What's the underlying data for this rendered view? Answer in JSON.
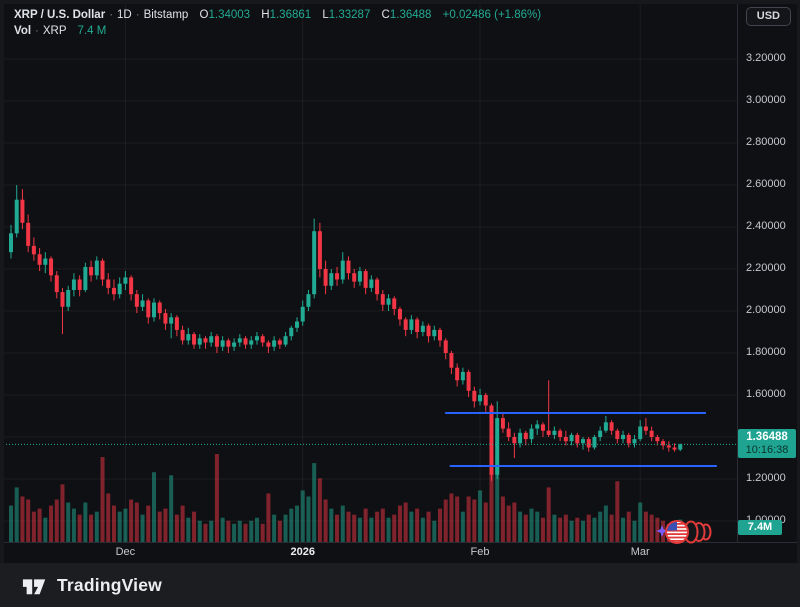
{
  "header": {
    "symbol": "XRP / U.S. Dollar",
    "sep": "·",
    "interval": "1D",
    "exchange": "Bitstamp",
    "ohlc": [
      {
        "k": "O",
        "v": "1.34003"
      },
      {
        "k": "H",
        "v": "1.36861"
      },
      {
        "k": "L",
        "v": "1.33287"
      },
      {
        "k": "C",
        "v": "1.36488"
      }
    ],
    "change": "+0.02486 (+1.86%)",
    "vol_label": "Vol",
    "vol_symbol": "XRP",
    "vol_value": "7.4 M"
  },
  "topbar": {
    "currency_button": "USD"
  },
  "price_scale": {
    "price_label": "1.36488",
    "countdown": "10:16:38",
    "volume_badge": "7.4M"
  },
  "footer": {
    "brand": "TradingView"
  },
  "icons": {
    "sticker": "rolling-us-flag-sticker",
    "logo": "tradingview-mark"
  },
  "colors": {
    "up": "#22ab94",
    "down": "#f23645",
    "accent_blue": "#2962ff",
    "badge": "#1fa491",
    "axis_text": "#c5c8ce",
    "grid": "rgba(255,255,255,0.055)",
    "background": "#0f1013"
  },
  "chart_data": {
    "type": "candlestick+volume",
    "title": "XRP / U.S. Dollar · 1D · Bitstamp",
    "current_price": 1.36488,
    "current_volume_m": 7.4,
    "y_axis": {
      "ticks": [
        3.2,
        3.0,
        2.8,
        2.6,
        2.4,
        2.2,
        2.0,
        1.8,
        1.6,
        1.4,
        1.2,
        1.0
      ],
      "min": 0.95,
      "max": 3.3
    },
    "x_axis": {
      "ticks": [
        {
          "label": "Dec",
          "day": 20,
          "bold": false
        },
        {
          "label": "2026",
          "day": 51,
          "bold": true
        },
        {
          "label": "Feb",
          "day": 82,
          "bold": false
        },
        {
          "label": "Mar",
          "day": 110,
          "bold": false
        }
      ]
    },
    "volume_scale_max_m": 29,
    "drawings": [
      {
        "type": "horizontal_line",
        "price": 1.514,
        "day_start": 75.9,
        "day_end": 121.5,
        "color": "#2962ff"
      },
      {
        "type": "horizontal_line",
        "price": 1.262,
        "day_start": 76.7,
        "day_end": 123.4,
        "color": "#2962ff"
      }
    ],
    "candles": [
      [
        2.28,
        2.41,
        2.25,
        2.37,
        12
      ],
      [
        2.37,
        2.6,
        2.35,
        2.53,
        18
      ],
      [
        2.53,
        2.58,
        2.39,
        2.42,
        15
      ],
      [
        2.42,
        2.46,
        2.28,
        2.31,
        14
      ],
      [
        2.31,
        2.35,
        2.24,
        2.27,
        10
      ],
      [
        2.27,
        2.3,
        2.19,
        2.22,
        11
      ],
      [
        2.22,
        2.28,
        2.18,
        2.25,
        8
      ],
      [
        2.25,
        2.26,
        2.14,
        2.17,
        12
      ],
      [
        2.17,
        2.19,
        2.06,
        2.09,
        14
      ],
      [
        2.09,
        2.11,
        1.89,
        2.02,
        19
      ],
      [
        2.02,
        2.12,
        2.0,
        2.1,
        13
      ],
      [
        2.1,
        2.18,
        2.07,
        2.15,
        11
      ],
      [
        2.15,
        2.17,
        2.07,
        2.1,
        9
      ],
      [
        2.1,
        2.23,
        2.09,
        2.21,
        13
      ],
      [
        2.21,
        2.24,
        2.14,
        2.17,
        9
      ],
      [
        2.17,
        2.26,
        2.15,
        2.24,
        10
      ],
      [
        2.24,
        2.25,
        2.12,
        2.15,
        28
      ],
      [
        2.15,
        2.18,
        2.08,
        2.11,
        16
      ],
      [
        2.11,
        2.15,
        2.05,
        2.08,
        12
      ],
      [
        2.08,
        2.16,
        2.06,
        2.13,
        10
      ],
      [
        2.13,
        2.19,
        2.1,
        2.16,
        11
      ],
      [
        2.16,
        2.17,
        2.05,
        2.08,
        14
      ],
      [
        2.08,
        2.1,
        1.99,
        2.02,
        13
      ],
      [
        2.02,
        2.08,
        2.0,
        2.05,
        9
      ],
      [
        2.05,
        2.06,
        1.94,
        1.97,
        12
      ],
      [
        1.97,
        2.06,
        1.95,
        2.04,
        23
      ],
      [
        2.04,
        2.05,
        1.96,
        1.99,
        10
      ],
      [
        1.99,
        2.01,
        1.91,
        1.94,
        11
      ],
      [
        1.94,
        1.99,
        1.87,
        1.97,
        22
      ],
      [
        1.97,
        1.98,
        1.88,
        1.91,
        9
      ],
      [
        1.91,
        1.93,
        1.84,
        1.86,
        12
      ],
      [
        1.86,
        1.92,
        1.84,
        1.89,
        8
      ],
      [
        1.89,
        1.9,
        1.82,
        1.84,
        10
      ],
      [
        1.84,
        1.89,
        1.82,
        1.87,
        7
      ],
      [
        1.87,
        1.88,
        1.82,
        1.85,
        6
      ],
      [
        1.85,
        1.9,
        1.83,
        1.88,
        7
      ],
      [
        1.88,
        1.89,
        1.8,
        1.83,
        29
      ],
      [
        1.83,
        1.88,
        1.81,
        1.86,
        8
      ],
      [
        1.86,
        1.87,
        1.8,
        1.83,
        7
      ],
      [
        1.83,
        1.87,
        1.81,
        1.85,
        6
      ],
      [
        1.85,
        1.89,
        1.83,
        1.87,
        7
      ],
      [
        1.87,
        1.88,
        1.82,
        1.84,
        6
      ],
      [
        1.84,
        1.88,
        1.82,
        1.86,
        7
      ],
      [
        1.86,
        1.9,
        1.84,
        1.88,
        8
      ],
      [
        1.88,
        1.89,
        1.83,
        1.85,
        6
      ],
      [
        1.85,
        1.86,
        1.8,
        1.83,
        16
      ],
      [
        1.83,
        1.88,
        1.81,
        1.86,
        9
      ],
      [
        1.86,
        1.87,
        1.82,
        1.84,
        7
      ],
      [
        1.84,
        1.9,
        1.83,
        1.88,
        9
      ],
      [
        1.88,
        1.93,
        1.86,
        1.92,
        11
      ],
      [
        1.92,
        1.97,
        1.9,
        1.95,
        12
      ],
      [
        1.95,
        2.05,
        1.93,
        2.02,
        17
      ],
      [
        2.02,
        2.1,
        2.0,
        2.08,
        15
      ],
      [
        2.08,
        2.44,
        2.06,
        2.38,
        26
      ],
      [
        2.38,
        2.42,
        2.16,
        2.2,
        21
      ],
      [
        2.2,
        2.24,
        2.08,
        2.12,
        14
      ],
      [
        2.12,
        2.2,
        2.1,
        2.18,
        11
      ],
      [
        2.18,
        2.21,
        2.12,
        2.15,
        9
      ],
      [
        2.15,
        2.28,
        2.13,
        2.24,
        12
      ],
      [
        2.24,
        2.26,
        2.15,
        2.18,
        10
      ],
      [
        2.18,
        2.2,
        2.11,
        2.14,
        9
      ],
      [
        2.14,
        2.21,
        2.12,
        2.19,
        8
      ],
      [
        2.19,
        2.2,
        2.08,
        2.11,
        11
      ],
      [
        2.11,
        2.17,
        2.09,
        2.15,
        8
      ],
      [
        2.15,
        2.16,
        2.05,
        2.08,
        10
      ],
      [
        2.08,
        2.1,
        2.0,
        2.03,
        11
      ],
      [
        2.03,
        2.08,
        2.0,
        2.06,
        8
      ],
      [
        2.06,
        2.07,
        1.98,
        2.01,
        9
      ],
      [
        2.01,
        2.02,
        1.93,
        1.96,
        12
      ],
      [
        1.96,
        1.97,
        1.88,
        1.91,
        13
      ],
      [
        1.91,
        1.98,
        1.89,
        1.96,
        10
      ],
      [
        1.96,
        1.97,
        1.87,
        1.9,
        11
      ],
      [
        1.9,
        1.95,
        1.88,
        1.93,
        8
      ],
      [
        1.93,
        1.94,
        1.85,
        1.88,
        10
      ],
      [
        1.88,
        1.93,
        1.86,
        1.91,
        7
      ],
      [
        1.91,
        1.92,
        1.83,
        1.86,
        11
      ],
      [
        1.86,
        1.87,
        1.77,
        1.8,
        14
      ],
      [
        1.8,
        1.81,
        1.7,
        1.73,
        16
      ],
      [
        1.73,
        1.75,
        1.64,
        1.67,
        15
      ],
      [
        1.67,
        1.73,
        1.65,
        1.71,
        10
      ],
      [
        1.71,
        1.72,
        1.59,
        1.62,
        15
      ],
      [
        1.62,
        1.64,
        1.54,
        1.57,
        14
      ],
      [
        1.57,
        1.63,
        1.55,
        1.6,
        17
      ],
      [
        1.6,
        1.61,
        1.52,
        1.55,
        13
      ],
      [
        1.55,
        1.56,
        1.19,
        1.22,
        24
      ],
      [
        1.22,
        1.57,
        1.2,
        1.49,
        26
      ],
      [
        1.49,
        1.51,
        1.42,
        1.44,
        15
      ],
      [
        1.44,
        1.47,
        1.38,
        1.4,
        12
      ],
      [
        1.4,
        1.42,
        1.3,
        1.37,
        13
      ],
      [
        1.37,
        1.44,
        1.35,
        1.42,
        10
      ],
      [
        1.42,
        1.43,
        1.36,
        1.39,
        9
      ],
      [
        1.39,
        1.46,
        1.37,
        1.44,
        11
      ],
      [
        1.44,
        1.48,
        1.41,
        1.46,
        10
      ],
      [
        1.46,
        1.47,
        1.4,
        1.43,
        8
      ],
      [
        1.43,
        1.67,
        1.4,
        1.41,
        18
      ],
      [
        1.41,
        1.45,
        1.39,
        1.43,
        9
      ],
      [
        1.43,
        1.44,
        1.38,
        1.4,
        8
      ],
      [
        1.4,
        1.43,
        1.36,
        1.38,
        9
      ],
      [
        1.38,
        1.42,
        1.36,
        1.41,
        7
      ],
      [
        1.41,
        1.42,
        1.35,
        1.37,
        8
      ],
      [
        1.37,
        1.4,
        1.34,
        1.39,
        7
      ],
      [
        1.39,
        1.4,
        1.33,
        1.35,
        9
      ],
      [
        1.35,
        1.41,
        1.34,
        1.4,
        8
      ],
      [
        1.4,
        1.45,
        1.38,
        1.43,
        10
      ],
      [
        1.43,
        1.5,
        1.42,
        1.47,
        12
      ],
      [
        1.47,
        1.48,
        1.41,
        1.43,
        9
      ],
      [
        1.43,
        1.44,
        1.37,
        1.39,
        20
      ],
      [
        1.39,
        1.43,
        1.37,
        1.41,
        8
      ],
      [
        1.41,
        1.42,
        1.35,
        1.37,
        10
      ],
      [
        1.37,
        1.41,
        1.35,
        1.39,
        7
      ],
      [
        1.39,
        1.48,
        1.38,
        1.45,
        13
      ],
      [
        1.45,
        1.49,
        1.41,
        1.43,
        10
      ],
      [
        1.43,
        1.45,
        1.38,
        1.4,
        9
      ],
      [
        1.4,
        1.41,
        1.36,
        1.38,
        8
      ],
      [
        1.38,
        1.39,
        1.34,
        1.36,
        7
      ],
      [
        1.36,
        1.38,
        1.33,
        1.35,
        6
      ],
      [
        1.35,
        1.37,
        1.33,
        1.34,
        6
      ],
      [
        1.34003,
        1.36861,
        1.33287,
        1.36488,
        7.4
      ]
    ]
  }
}
